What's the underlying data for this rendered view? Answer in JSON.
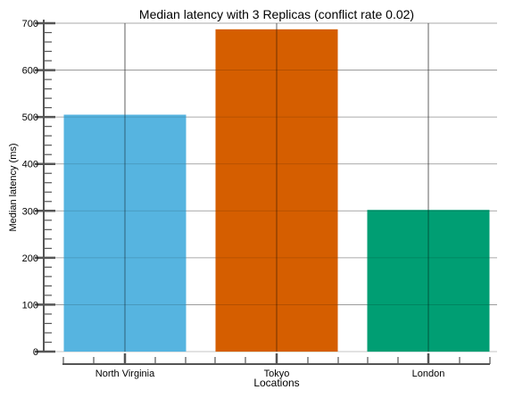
{
  "chart_data": {
    "type": "bar",
    "title": "Median latency with 3 Replicas (conflict rate 0.02)",
    "xlabel": "Locations",
    "ylabel": "Median latency (ms)",
    "categories": [
      "North Virginia",
      "Tokyo",
      "London"
    ],
    "values": [
      505,
      687,
      302
    ],
    "colors": [
      "#56B4E0",
      "#D55E00",
      "#009E73"
    ],
    "ylim": [
      0,
      700
    ],
    "yticks": [
      0,
      100,
      200,
      300,
      400,
      500,
      600,
      700
    ],
    "grid": true,
    "legend": "none"
  }
}
